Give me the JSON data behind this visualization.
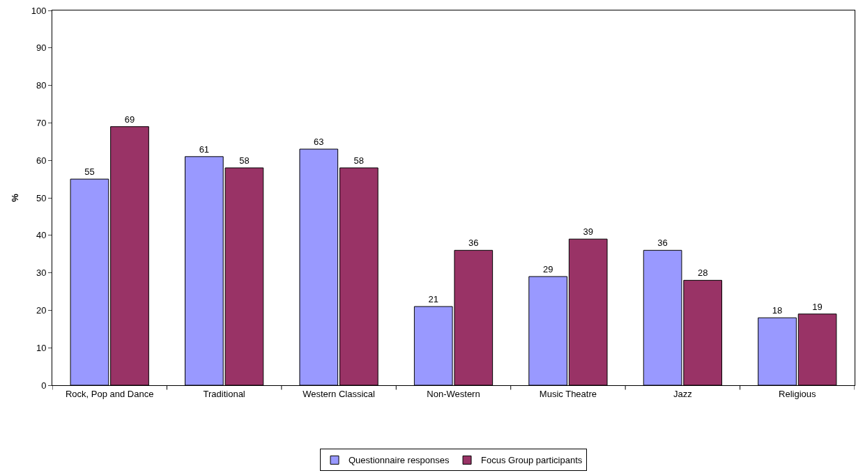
{
  "chart_data": {
    "type": "bar",
    "ylabel": "%",
    "categories": [
      "Rock, Pop and Dance",
      "Traditional",
      "Western Classical",
      "Non-Western",
      "Music Theatre",
      "Jazz",
      "Religious"
    ],
    "series": [
      {
        "name": "Questionnaire responses",
        "color": "#9999ff",
        "values": [
          55,
          61,
          63,
          21,
          29,
          36,
          18
        ]
      },
      {
        "name": "Focus Group participants",
        "color": "#993366",
        "values": [
          69,
          58,
          58,
          36,
          39,
          28,
          19
        ]
      }
    ],
    "ylim": [
      0,
      100
    ],
    "yticks": [
      0,
      10,
      20,
      30,
      40,
      50,
      60,
      70,
      80,
      90,
      100
    ],
    "data_labels": true,
    "legend": "bottom"
  }
}
